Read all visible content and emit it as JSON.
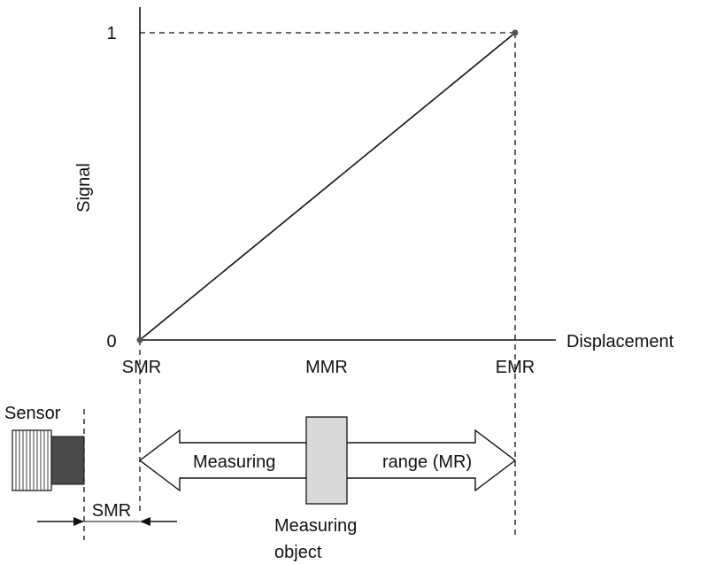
{
  "diagram": {
    "y_axis_label": "Signal",
    "x_axis_label": "Displacement",
    "y_ticks": {
      "low": "0",
      "high": "1"
    },
    "x_markers": {
      "start": "SMR",
      "middle": "MMR",
      "end": "EMR"
    },
    "sensor_label": "Sensor",
    "gap_label": "SMR",
    "range_label_left": "Measuring",
    "range_label_right": "range (MR)",
    "object_label_line1": "Measuring",
    "object_label_line2": "object"
  },
  "colors": {
    "line": "#111111",
    "sensor_body": "#ffffff",
    "sensor_tip": "#4a4a4a",
    "object_fill": "#d9d9d9",
    "point": "#555555"
  }
}
